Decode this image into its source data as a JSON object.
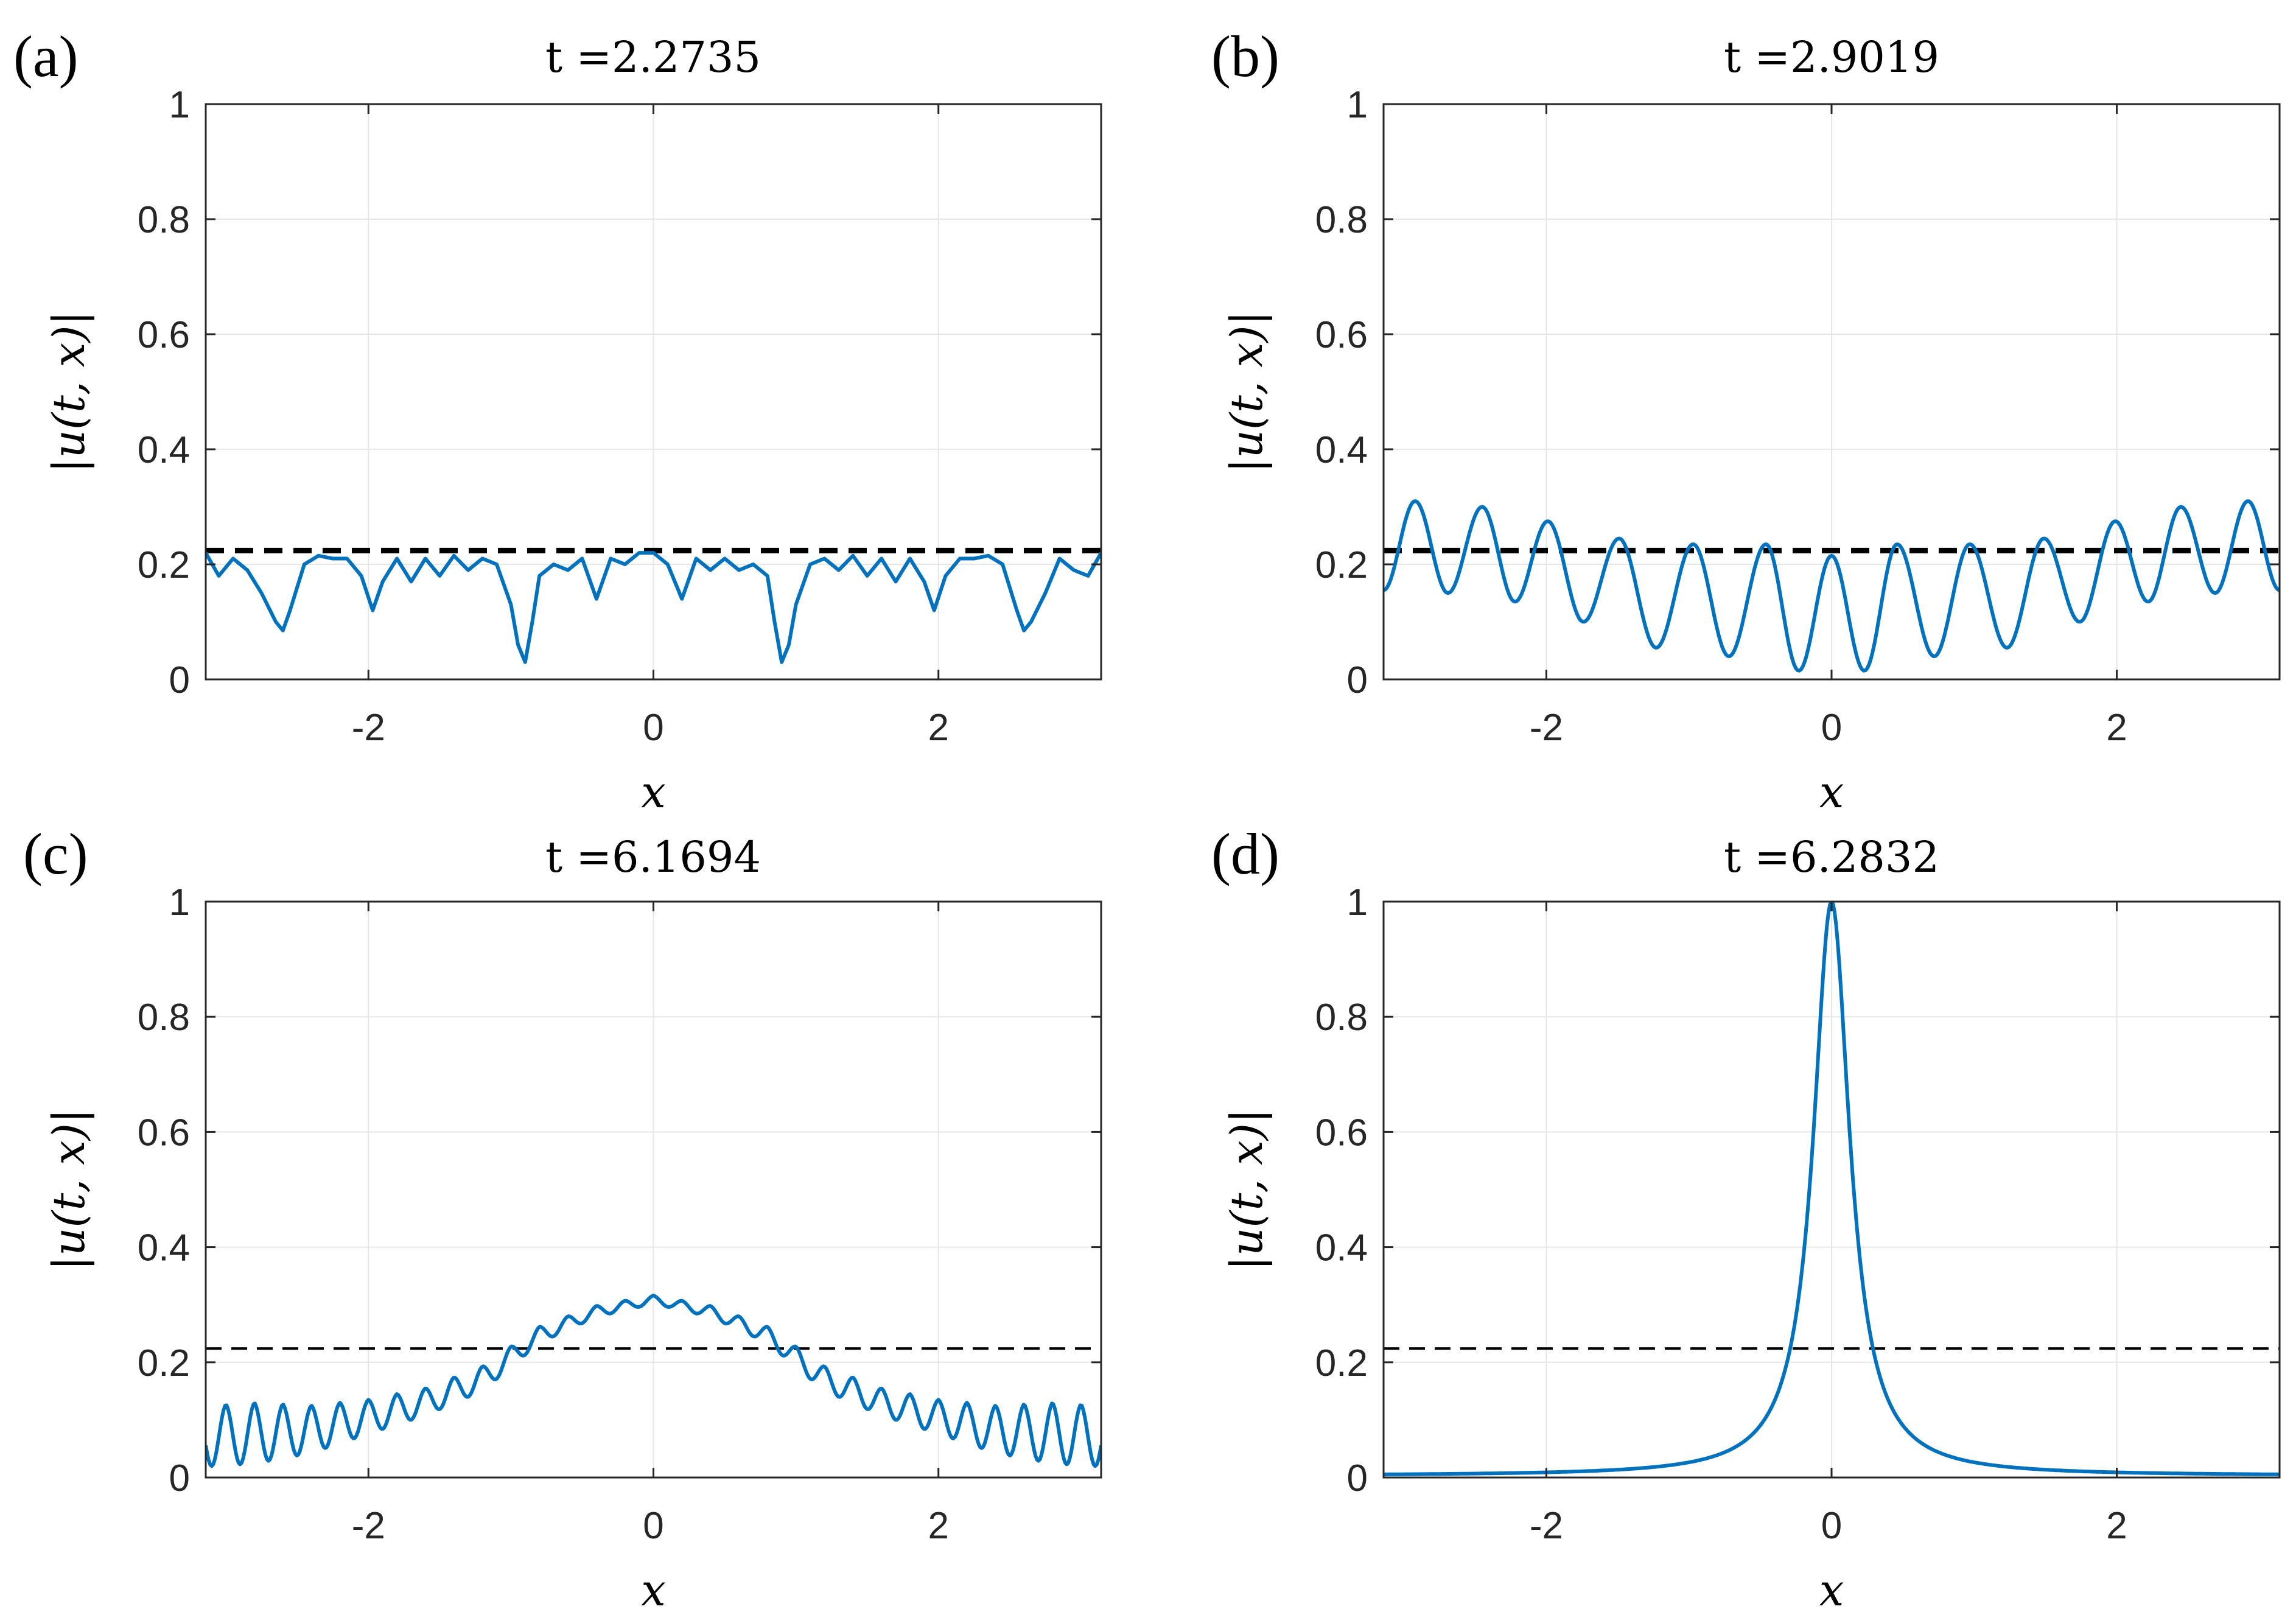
{
  "figure": {
    "colors": {
      "curve": "#0072BD",
      "reference": "#000000",
      "grid": "#e6e6e6",
      "axis": "#262626"
    }
  },
  "chart_data": [
    {
      "type": "line",
      "panel_label": "(a)",
      "title": "t =2.2735",
      "xlabel": "x",
      "ylabel": "|u(t, x)|",
      "xlim": [
        -3.1416,
        3.1416
      ],
      "ylim": [
        0,
        1
      ],
      "xticks": [
        -2,
        0,
        2
      ],
      "xtick_labels": [
        "-2",
        "0",
        "2"
      ],
      "yticks": [
        0,
        0.2,
        0.4,
        0.6,
        0.8,
        1
      ],
      "ytick_labels": [
        "0",
        "0.2",
        "0.4",
        "0.6",
        "0.8",
        "1"
      ],
      "grid": true,
      "reference_line": {
        "y": 0.224,
        "style": "dashed-thick"
      },
      "series": [
        {
          "name": "|u(t,x)|",
          "x": [
            -3.1416,
            -3.05,
            -2.95,
            -2.85,
            -2.75,
            -2.65,
            -2.6,
            -2.55,
            -2.45,
            -2.35,
            -2.25,
            -2.15,
            -2.05,
            -1.97,
            -1.9,
            -1.8,
            -1.7,
            -1.6,
            -1.5,
            -1.4,
            -1.3,
            -1.2,
            -1.1,
            -1.0,
            -0.95,
            -0.9,
            -0.85,
            -0.8,
            -0.7,
            -0.6,
            -0.5,
            -0.4,
            -0.3,
            -0.2,
            -0.1,
            0.0,
            0.1,
            0.2,
            0.3,
            0.4,
            0.5,
            0.6,
            0.7,
            0.8,
            0.85,
            0.9,
            0.95,
            1.0,
            1.1,
            1.2,
            1.3,
            1.4,
            1.5,
            1.6,
            1.7,
            1.8,
            1.9,
            1.97,
            2.05,
            2.15,
            2.25,
            2.35,
            2.45,
            2.55,
            2.6,
            2.65,
            2.75,
            2.85,
            2.95,
            3.05,
            3.1416
          ],
          "y": [
            0.22,
            0.18,
            0.21,
            0.19,
            0.15,
            0.1,
            0.085,
            0.12,
            0.2,
            0.215,
            0.21,
            0.21,
            0.18,
            0.12,
            0.17,
            0.21,
            0.17,
            0.21,
            0.18,
            0.215,
            0.19,
            0.21,
            0.2,
            0.13,
            0.06,
            0.03,
            0.1,
            0.18,
            0.2,
            0.19,
            0.21,
            0.14,
            0.21,
            0.2,
            0.22,
            0.22,
            0.2,
            0.14,
            0.21,
            0.19,
            0.21,
            0.19,
            0.2,
            0.18,
            0.1,
            0.03,
            0.06,
            0.13,
            0.2,
            0.21,
            0.19,
            0.215,
            0.18,
            0.21,
            0.17,
            0.21,
            0.17,
            0.12,
            0.18,
            0.21,
            0.21,
            0.215,
            0.2,
            0.12,
            0.085,
            0.1,
            0.15,
            0.21,
            0.19,
            0.18,
            0.22
          ]
        }
      ]
    },
    {
      "type": "line",
      "panel_label": "(b)",
      "title": "t =2.9019",
      "xlabel": "x",
      "ylabel": "|u(t, x)|",
      "xlim": [
        -3.1416,
        3.1416
      ],
      "ylim": [
        0,
        1
      ],
      "xticks": [
        -2,
        0,
        2
      ],
      "xtick_labels": [
        "-2",
        "0",
        "2"
      ],
      "yticks": [
        0,
        0.2,
        0.4,
        0.6,
        0.8,
        1
      ],
      "ytick_labels": [
        "0",
        "0.2",
        "0.4",
        "0.6",
        "0.8",
        "1"
      ],
      "grid": true,
      "reference_line": {
        "y": 0.224,
        "style": "dashed-thick"
      },
      "series": [
        {
          "name": "|u(t,x)|",
          "generator": {
            "kind": "oscillation",
            "samples": 500,
            "peaks_x": [
              -2.92,
              -2.45,
              -1.99,
              -1.49,
              -0.97,
              -0.46,
              0.0,
              0.46,
              0.97,
              1.49,
              1.99,
              2.45,
              2.92
            ],
            "peaks_y": [
              0.31,
              0.3,
              0.275,
              0.245,
              0.235,
              0.235,
              0.215,
              0.235,
              0.235,
              0.245,
              0.275,
              0.3,
              0.31
            ],
            "troughs_x": [
              -3.1416,
              -2.69,
              -2.22,
              -1.74,
              -1.23,
              -0.72,
              -0.23,
              0.23,
              0.72,
              1.23,
              1.74,
              2.22,
              2.69,
              3.1416
            ],
            "troughs_y": [
              0.155,
              0.15,
              0.135,
              0.1,
              0.055,
              0.04,
              0.015,
              0.015,
              0.04,
              0.055,
              0.1,
              0.135,
              0.15,
              0.155
            ]
          }
        }
      ]
    },
    {
      "type": "line",
      "panel_label": "(c)",
      "title": "t =6.1694",
      "xlabel": "x",
      "ylabel": "|u(t, x)|",
      "xlim": [
        -3.1416,
        3.1416
      ],
      "ylim": [
        0,
        1
      ],
      "xticks": [
        -2,
        0,
        2
      ],
      "xtick_labels": [
        "-2",
        "0",
        "2"
      ],
      "yticks": [
        0,
        0.2,
        0.4,
        0.6,
        0.8,
        1
      ],
      "ytick_labels": [
        "0",
        "0.2",
        "0.4",
        "0.6",
        "0.8",
        "1"
      ],
      "grid": true,
      "reference_line": {
        "y": 0.224,
        "style": "dashed-thin"
      },
      "series": [
        {
          "name": "|u(t,x)|",
          "generator": {
            "kind": "envelope-ripple",
            "samples": 600,
            "envelope_x": [
              -3.1416,
              -2.8,
              -2.4,
              -2.0,
              -1.6,
              -1.2,
              -0.8,
              -0.4,
              0.0,
              0.4,
              0.8,
              1.2,
              1.6,
              2.0,
              2.4,
              2.8,
              3.1416
            ],
            "envelope_y": [
              0.08,
              0.085,
              0.09,
              0.11,
              0.135,
              0.175,
              0.25,
              0.29,
              0.31,
              0.29,
              0.25,
              0.175,
              0.135,
              0.11,
              0.09,
              0.085,
              0.08
            ],
            "ripple_x": [
              -3.1416,
              -2.8,
              -2.4,
              -2.0,
              -1.6,
              -1.2,
              -0.8,
              -0.4,
              0.0,
              0.4,
              0.8,
              1.2,
              1.6,
              2.0,
              2.4,
              2.8,
              3.1416
            ],
            "ripple_amp": [
              0.045,
              0.045,
              0.035,
              0.025,
              0.02,
              0.018,
              0.012,
              0.008,
              0.006,
              0.008,
              0.012,
              0.018,
              0.02,
              0.025,
              0.035,
              0.045,
              0.045
            ],
            "ripple_period": 0.2
          }
        }
      ]
    },
    {
      "type": "line",
      "panel_label": "(d)",
      "title": "t =6.2832",
      "xlabel": "x",
      "ylabel": "|u(t, x)|",
      "xlim": [
        -3.1416,
        3.1416
      ],
      "ylim": [
        0,
        1
      ],
      "xticks": [
        -2,
        0,
        2
      ],
      "xtick_labels": [
        "-2",
        "0",
        "2"
      ],
      "yticks": [
        0,
        0.2,
        0.4,
        0.6,
        0.8,
        1
      ],
      "ytick_labels": [
        "0",
        "0.2",
        "0.4",
        "0.6",
        "0.8",
        "1"
      ],
      "grid": true,
      "reference_line": {
        "y": 0.224,
        "style": "dashed-thin"
      },
      "series": [
        {
          "name": "|u(t,x)|",
          "generator": {
            "kind": "peak",
            "samples": 600,
            "center": 0.0,
            "height": 1.0,
            "width": 0.155,
            "floor": 0.003
          }
        }
      ]
    }
  ]
}
